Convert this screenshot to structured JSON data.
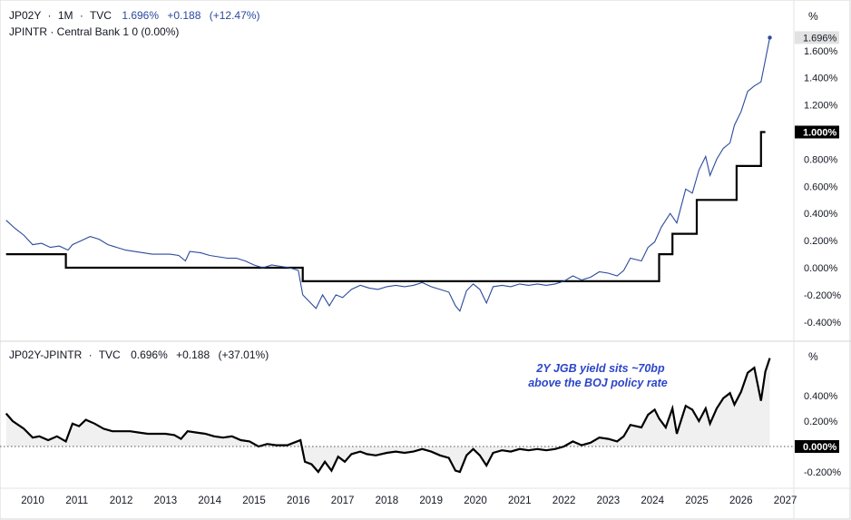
{
  "top_pane": {
    "legend_symbol": "JP02Y",
    "legend_timeframe": "1M",
    "legend_source": "TVC",
    "legend_value": "1.696%",
    "legend_change": "+0.188",
    "legend_change_pct": "(+12.47%)",
    "second_legend": "JPINTR · Central Bank  1  0 (0.00%)",
    "unit_label": "%",
    "last_yield_label": "1.696%",
    "last_rate_label": "1.000%"
  },
  "bottom_pane": {
    "legend_symbol": "JP02Y-JPINTR",
    "legend_source": "TVC",
    "legend_value": "0.696%",
    "legend_change": "+0.188",
    "legend_change_pct": "(+37.01%)",
    "unit_label": "%",
    "zero_label": "0.000%",
    "annotation_line1": "2Y JGB yield sits ~70bp",
    "annotation_line2": "above the BOJ policy rate"
  },
  "colors": {
    "yield_line": "#2a4a9c",
    "policy_rate": "#000000",
    "spread_line": "#000000",
    "spread_fill": "#f0f0f0",
    "annotation": "#2c45c8",
    "text": "#131722",
    "grid": "#e6e6e6"
  },
  "chart_data": [
    {
      "type": "line",
      "pane": "top",
      "x_ticks": [
        "2010",
        "2011",
        "2012",
        "2013",
        "2014",
        "2015",
        "2016",
        "2017",
        "2018",
        "2019",
        "2020",
        "2021",
        "2022",
        "2023",
        "2024",
        "2025",
        "2026",
        "2027"
      ],
      "ylim": [
        -0.45,
        1.85
      ],
      "y_ticks": [
        "-0.400%",
        "-0.200%",
        "0.000%",
        "0.200%",
        "0.400%",
        "0.600%",
        "0.800%",
        "1.000%",
        "1.200%",
        "1.400%",
        "1.600%"
      ],
      "series": [
        {
          "name": "JP02Y",
          "points": [
            [
              2009.4,
              0.35
            ],
            [
              2009.6,
              0.29
            ],
            [
              2009.8,
              0.24
            ],
            [
              2010.0,
              0.17
            ],
            [
              2010.2,
              0.18
            ],
            [
              2010.4,
              0.15
            ],
            [
              2010.6,
              0.16
            ],
            [
              2010.8,
              0.13
            ],
            [
              2010.9,
              0.17
            ],
            [
              2011.1,
              0.2
            ],
            [
              2011.3,
              0.23
            ],
            [
              2011.5,
              0.21
            ],
            [
              2011.7,
              0.17
            ],
            [
              2011.9,
              0.15
            ],
            [
              2012.1,
              0.13
            ],
            [
              2012.3,
              0.12
            ],
            [
              2012.5,
              0.11
            ],
            [
              2012.7,
              0.1
            ],
            [
              2012.9,
              0.1
            ],
            [
              2013.1,
              0.1
            ],
            [
              2013.3,
              0.09
            ],
            [
              2013.45,
              0.05
            ],
            [
              2013.55,
              0.12
            ],
            [
              2013.8,
              0.11
            ],
            [
              2014.0,
              0.09
            ],
            [
              2014.2,
              0.08
            ],
            [
              2014.4,
              0.07
            ],
            [
              2014.6,
              0.07
            ],
            [
              2014.8,
              0.05
            ],
            [
              2015.0,
              0.02
            ],
            [
              2015.2,
              0.0
            ],
            [
              2015.4,
              0.02
            ],
            [
              2015.6,
              0.01
            ],
            [
              2015.8,
              0.0
            ],
            [
              2016.0,
              -0.02
            ],
            [
              2016.1,
              -0.2
            ],
            [
              2016.25,
              -0.25
            ],
            [
              2016.4,
              -0.3
            ],
            [
              2016.55,
              -0.2
            ],
            [
              2016.7,
              -0.28
            ],
            [
              2016.85,
              -0.2
            ],
            [
              2017.0,
              -0.22
            ],
            [
              2017.2,
              -0.16
            ],
            [
              2017.4,
              -0.13
            ],
            [
              2017.6,
              -0.15
            ],
            [
              2017.8,
              -0.16
            ],
            [
              2018.0,
              -0.14
            ],
            [
              2018.2,
              -0.13
            ],
            [
              2018.4,
              -0.14
            ],
            [
              2018.6,
              -0.13
            ],
            [
              2018.8,
              -0.11
            ],
            [
              2019.0,
              -0.14
            ],
            [
              2019.2,
              -0.16
            ],
            [
              2019.4,
              -0.18
            ],
            [
              2019.55,
              -0.28
            ],
            [
              2019.65,
              -0.32
            ],
            [
              2019.8,
              -0.17
            ],
            [
              2019.95,
              -0.12
            ],
            [
              2020.1,
              -0.16
            ],
            [
              2020.25,
              -0.26
            ],
            [
              2020.4,
              -0.14
            ],
            [
              2020.6,
              -0.13
            ],
            [
              2020.8,
              -0.14
            ],
            [
              2021.0,
              -0.12
            ],
            [
              2021.2,
              -0.13
            ],
            [
              2021.4,
              -0.12
            ],
            [
              2021.6,
              -0.13
            ],
            [
              2021.8,
              -0.12
            ],
            [
              2022.0,
              -0.1
            ],
            [
              2022.2,
              -0.06
            ],
            [
              2022.4,
              -0.09
            ],
            [
              2022.6,
              -0.07
            ],
            [
              2022.8,
              -0.03
            ],
            [
              2023.0,
              -0.04
            ],
            [
              2023.2,
              -0.06
            ],
            [
              2023.35,
              -0.02
            ],
            [
              2023.5,
              0.07
            ],
            [
              2023.75,
              0.05
            ],
            [
              2023.9,
              0.15
            ],
            [
              2024.05,
              0.19
            ],
            [
              2024.2,
              0.3
            ],
            [
              2024.4,
              0.4
            ],
            [
              2024.55,
              0.33
            ],
            [
              2024.75,
              0.58
            ],
            [
              2024.9,
              0.55
            ],
            [
              2025.05,
              0.72
            ],
            [
              2025.2,
              0.82
            ],
            [
              2025.3,
              0.68
            ],
            [
              2025.45,
              0.8
            ],
            [
              2025.6,
              0.88
            ],
            [
              2025.75,
              0.92
            ],
            [
              2025.85,
              1.05
            ],
            [
              2026.0,
              1.15
            ],
            [
              2026.15,
              1.3
            ],
            [
              2026.3,
              1.34
            ],
            [
              2026.45,
              1.37
            ],
            [
              2026.65,
              1.696
            ]
          ]
        },
        {
          "name": "JPINTR",
          "step_points": [
            [
              2009.4,
              0.1
            ],
            [
              2010.75,
              0.1
            ],
            [
              2010.75,
              0.0
            ],
            [
              2016.1,
              0.0
            ],
            [
              2016.1,
              -0.1
            ],
            [
              2024.15,
              -0.1
            ],
            [
              2024.15,
              0.1
            ],
            [
              2024.45,
              0.1
            ],
            [
              2024.45,
              0.25
            ],
            [
              2025.0,
              0.25
            ],
            [
              2025.0,
              0.5
            ],
            [
              2025.9,
              0.5
            ],
            [
              2025.9,
              0.75
            ],
            [
              2026.45,
              0.75
            ],
            [
              2026.45,
              1.0
            ],
            [
              2026.55,
              1.0
            ]
          ]
        }
      ]
    },
    {
      "type": "area",
      "pane": "bottom",
      "ylim": [
        -0.33,
        0.77
      ],
      "y_ticks": [
        "-0.200%",
        "0.000%",
        "0.200%",
        "0.400%"
      ],
      "series": [
        {
          "name": "JP02Y-JPINTR",
          "points": [
            [
              2009.4,
              0.26
            ],
            [
              2009.55,
              0.2
            ],
            [
              2009.8,
              0.14
            ],
            [
              2010.0,
              0.07
            ],
            [
              2010.15,
              0.08
            ],
            [
              2010.35,
              0.05
            ],
            [
              2010.55,
              0.08
            ],
            [
              2010.75,
              0.04
            ],
            [
              2010.9,
              0.18
            ],
            [
              2011.05,
              0.16
            ],
            [
              2011.2,
              0.21
            ],
            [
              2011.4,
              0.18
            ],
            [
              2011.6,
              0.14
            ],
            [
              2011.8,
              0.12
            ],
            [
              2012.0,
              0.12
            ],
            [
              2012.2,
              0.12
            ],
            [
              2012.4,
              0.11
            ],
            [
              2012.6,
              0.1
            ],
            [
              2012.8,
              0.1
            ],
            [
              2013.0,
              0.1
            ],
            [
              2013.2,
              0.09
            ],
            [
              2013.35,
              0.06
            ],
            [
              2013.5,
              0.12
            ],
            [
              2013.7,
              0.11
            ],
            [
              2013.9,
              0.1
            ],
            [
              2014.1,
              0.08
            ],
            [
              2014.3,
              0.07
            ],
            [
              2014.5,
              0.08
            ],
            [
              2014.7,
              0.05
            ],
            [
              2014.9,
              0.04
            ],
            [
              2015.1,
              0.0
            ],
            [
              2015.3,
              0.02
            ],
            [
              2015.5,
              0.01
            ],
            [
              2015.75,
              0.01
            ],
            [
              2015.9,
              0.03
            ],
            [
              2016.05,
              0.05
            ],
            [
              2016.15,
              -0.12
            ],
            [
              2016.3,
              -0.14
            ],
            [
              2016.45,
              -0.2
            ],
            [
              2016.6,
              -0.12
            ],
            [
              2016.75,
              -0.19
            ],
            [
              2016.9,
              -0.08
            ],
            [
              2017.05,
              -0.12
            ],
            [
              2017.2,
              -0.06
            ],
            [
              2017.4,
              -0.04
            ],
            [
              2017.55,
              -0.06
            ],
            [
              2017.75,
              -0.07
            ],
            [
              2018.0,
              -0.05
            ],
            [
              2018.2,
              -0.04
            ],
            [
              2018.4,
              -0.05
            ],
            [
              2018.6,
              -0.04
            ],
            [
              2018.8,
              -0.02
            ],
            [
              2019.0,
              -0.04
            ],
            [
              2019.2,
              -0.07
            ],
            [
              2019.4,
              -0.09
            ],
            [
              2019.55,
              -0.19
            ],
            [
              2019.65,
              -0.2
            ],
            [
              2019.8,
              -0.07
            ],
            [
              2019.95,
              -0.02
            ],
            [
              2020.1,
              -0.07
            ],
            [
              2020.25,
              -0.15
            ],
            [
              2020.4,
              -0.05
            ],
            [
              2020.6,
              -0.03
            ],
            [
              2020.8,
              -0.04
            ],
            [
              2021.0,
              -0.02
            ],
            [
              2021.2,
              -0.03
            ],
            [
              2021.4,
              -0.02
            ],
            [
              2021.6,
              -0.03
            ],
            [
              2021.8,
              -0.02
            ],
            [
              2022.0,
              0.0
            ],
            [
              2022.2,
              0.04
            ],
            [
              2022.4,
              0.01
            ],
            [
              2022.6,
              0.03
            ],
            [
              2022.8,
              0.07
            ],
            [
              2023.0,
              0.06
            ],
            [
              2023.2,
              0.04
            ],
            [
              2023.35,
              0.08
            ],
            [
              2023.5,
              0.17
            ],
            [
              2023.75,
              0.15
            ],
            [
              2023.9,
              0.25
            ],
            [
              2024.05,
              0.29
            ],
            [
              2024.15,
              0.22
            ],
            [
              2024.3,
              0.15
            ],
            [
              2024.45,
              0.3
            ],
            [
              2024.55,
              0.1
            ],
            [
              2024.75,
              0.32
            ],
            [
              2024.9,
              0.29
            ],
            [
              2025.05,
              0.2
            ],
            [
              2025.2,
              0.3
            ],
            [
              2025.3,
              0.18
            ],
            [
              2025.45,
              0.3
            ],
            [
              2025.6,
              0.38
            ],
            [
              2025.75,
              0.42
            ],
            [
              2025.85,
              0.33
            ],
            [
              2026.0,
              0.43
            ],
            [
              2026.15,
              0.58
            ],
            [
              2026.3,
              0.62
            ],
            [
              2026.45,
              0.36
            ],
            [
              2026.55,
              0.59
            ],
            [
              2026.65,
              0.696
            ]
          ]
        }
      ]
    }
  ]
}
